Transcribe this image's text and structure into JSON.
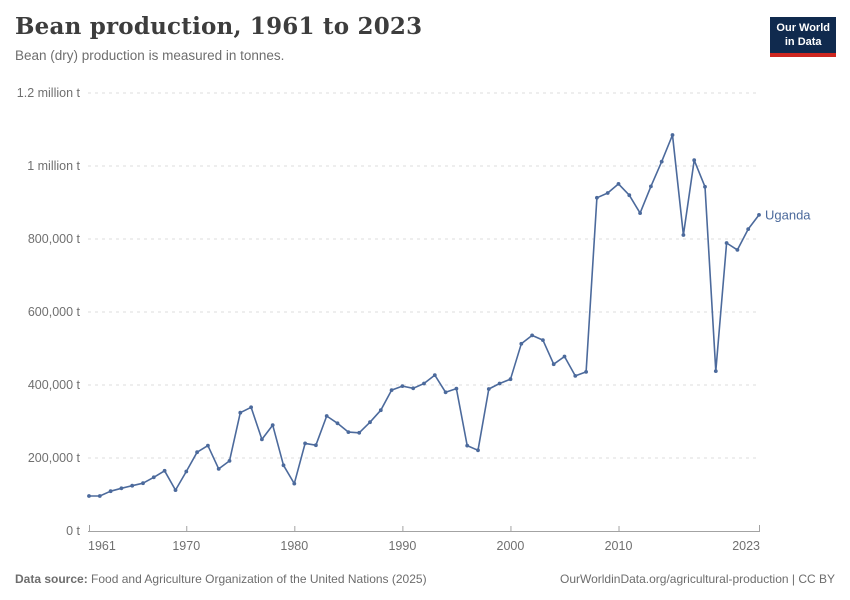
{
  "header": {
    "title": "Bean production, 1961 to 2023",
    "subtitle": "Bean (dry) production is measured in tonnes."
  },
  "logo": {
    "line1": "Our World",
    "line2": "in Data"
  },
  "footer": {
    "source_label": "Data source:",
    "source_text": " Food and Agriculture Organization of the United Nations (2025)",
    "credit": "OurWorldinData.org/agricultural-production | CC BY"
  },
  "colors": {
    "line": "#4C6A9C",
    "series_label": "#4C6A9C",
    "grid": "#DCDCDC",
    "axis": "#A3A3A3",
    "tick_label": "#707070",
    "title_text": "#3D3D3D",
    "subtitle_text": "#6E6E6E",
    "logo_bg": "#102A4E",
    "logo_red": "#CE261F",
    "background": "#FFFFFF"
  },
  "chart_data": {
    "type": "line",
    "title": "Bean production, 1961 to 2023",
    "subtitle": "Bean (dry) production is measured in tonnes.",
    "unit": "tonnes",
    "xlabel": "",
    "ylabel": "",
    "xlim": [
      1961,
      2023
    ],
    "ylim": [
      0,
      1200000
    ],
    "grid": "horizontal-dashed",
    "legend_position": "end-of-line-label",
    "x_ticks": [
      1961,
      1970,
      1980,
      1990,
      2000,
      2010,
      2023
    ],
    "y_ticks": [
      {
        "value": 0,
        "label": "0 t"
      },
      {
        "value": 200000,
        "label": "200,000 t"
      },
      {
        "value": 400000,
        "label": "400,000 t"
      },
      {
        "value": 600000,
        "label": "600,000 t"
      },
      {
        "value": 800000,
        "label": "800,000 t"
      },
      {
        "value": 1000000,
        "label": "1 million t"
      },
      {
        "value": 1200000,
        "label": "1.2 million t"
      }
    ],
    "start_year": 1961,
    "series": [
      {
        "name": "Uganda",
        "color": "#4C6A9C",
        "values": [
          96000,
          96000,
          109000,
          117000,
          124000,
          131000,
          147000,
          165000,
          112000,
          163000,
          216000,
          234000,
          170000,
          192000,
          324000,
          339000,
          251000,
          290000,
          180000,
          130000,
          240000,
          235000,
          315000,
          295000,
          271000,
          269000,
          298000,
          331000,
          386000,
          397000,
          391000,
          404000,
          427000,
          380000,
          390000,
          234000,
          221000,
          389000,
          404000,
          416000,
          513000,
          536000,
          523000,
          457000,
          478000,
          425000,
          436000,
          913000,
          926000,
          951000,
          920000,
          871000,
          944000,
          1012000,
          1085000,
          811000,
          1016000,
          943000,
          438000,
          789000,
          770000,
          827000,
          866000
        ]
      }
    ]
  }
}
